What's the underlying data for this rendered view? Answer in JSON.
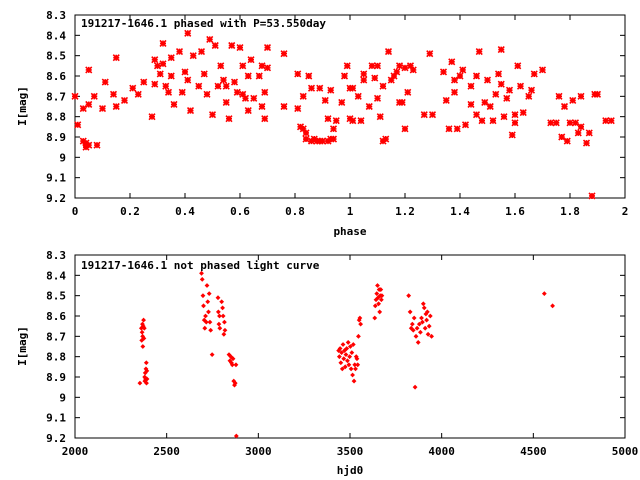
{
  "chart_data": [
    {
      "type": "scatter",
      "title": "191217-1646.1 phased with P=53.550day",
      "xlabel": "phase",
      "ylabel": "I[mag]",
      "xlim": [
        0,
        2
      ],
      "ylim": [
        8.3,
        9.2
      ],
      "y_inverted": true,
      "xticks": [
        "0",
        "0.2",
        "0.4",
        "0.6",
        "0.8",
        "1",
        "1.2",
        "1.4",
        "1.6",
        "1.8",
        "2"
      ],
      "yticks": [
        "8.3",
        "8.4",
        "8.5",
        "8.6",
        "8.7",
        "8.8",
        "8.9",
        "9",
        "9.1",
        "9.2"
      ],
      "marker": "star",
      "color": "#ff0000",
      "grid": false,
      "points": [
        [
          0.0,
          8.7
        ],
        [
          0.01,
          8.84
        ],
        [
          0.03,
          8.76
        ],
        [
          0.03,
          8.92
        ],
        [
          0.04,
          8.93
        ],
        [
          0.04,
          8.95
        ],
        [
          0.05,
          8.94
        ],
        [
          0.05,
          8.74
        ],
        [
          0.05,
          8.57
        ],
        [
          0.07,
          8.7
        ],
        [
          0.08,
          8.94
        ],
        [
          0.1,
          8.76
        ],
        [
          0.11,
          8.63
        ],
        [
          0.14,
          8.69
        ],
        [
          0.15,
          8.75
        ],
        [
          0.15,
          8.51
        ],
        [
          0.18,
          8.72
        ],
        [
          0.21,
          8.66
        ],
        [
          0.23,
          8.69
        ],
        [
          0.25,
          8.63
        ],
        [
          0.28,
          8.8
        ],
        [
          0.29,
          8.52
        ],
        [
          0.29,
          8.64
        ],
        [
          0.3,
          8.55
        ],
        [
          0.31,
          8.59
        ],
        [
          0.32,
          8.44
        ],
        [
          0.32,
          8.54
        ],
        [
          0.33,
          8.65
        ],
        [
          0.34,
          8.68
        ],
        [
          0.35,
          8.51
        ],
        [
          0.35,
          8.6
        ],
        [
          0.36,
          8.74
        ],
        [
          0.38,
          8.48
        ],
        [
          0.39,
          8.68
        ],
        [
          0.4,
          8.58
        ],
        [
          0.41,
          8.39
        ],
        [
          0.41,
          8.62
        ],
        [
          0.42,
          8.77
        ],
        [
          0.43,
          8.5
        ],
        [
          0.45,
          8.65
        ],
        [
          0.46,
          8.48
        ],
        [
          0.47,
          8.59
        ],
        [
          0.48,
          8.69
        ],
        [
          0.49,
          8.42
        ],
        [
          0.5,
          8.79
        ],
        [
          0.51,
          8.45
        ],
        [
          0.52,
          8.65
        ],
        [
          0.53,
          8.55
        ],
        [
          0.54,
          8.62
        ],
        [
          0.55,
          8.73
        ],
        [
          0.55,
          8.65
        ],
        [
          0.56,
          8.81
        ],
        [
          0.57,
          8.45
        ],
        [
          0.58,
          8.63
        ],
        [
          0.59,
          8.68
        ],
        [
          0.6,
          8.46
        ],
        [
          0.61,
          8.55
        ],
        [
          0.61,
          8.69
        ],
        [
          0.62,
          8.71
        ],
        [
          0.63,
          8.6
        ],
        [
          0.63,
          8.77
        ],
        [
          0.64,
          8.52
        ],
        [
          0.65,
          8.71
        ],
        [
          0.67,
          8.6
        ],
        [
          0.68,
          8.75
        ],
        [
          0.68,
          8.55
        ],
        [
          0.69,
          8.68
        ],
        [
          0.69,
          8.81
        ],
        [
          0.7,
          8.56
        ],
        [
          0.7,
          8.46
        ],
        [
          0.76,
          8.75
        ],
        [
          0.76,
          8.49
        ],
        [
          0.81,
          8.59
        ],
        [
          0.81,
          8.76
        ],
        [
          0.82,
          8.85
        ],
        [
          0.83,
          8.86
        ],
        [
          0.83,
          8.7
        ],
        [
          0.84,
          8.91
        ],
        [
          0.84,
          8.88
        ],
        [
          0.85,
          8.6
        ],
        [
          0.86,
          8.92
        ],
        [
          0.86,
          8.66
        ],
        [
          0.87,
          8.91
        ],
        [
          0.88,
          8.92
        ],
        [
          0.89,
          8.92
        ],
        [
          0.89,
          8.66
        ],
        [
          0.9,
          8.92
        ],
        [
          0.91,
          8.72
        ],
        [
          0.92,
          8.92
        ],
        [
          0.92,
          8.81
        ],
        [
          0.93,
          8.67
        ],
        [
          0.93,
          8.91
        ],
        [
          0.94,
          8.91
        ],
        [
          0.94,
          8.86
        ],
        [
          0.95,
          8.82
        ],
        [
          0.97,
          8.73
        ],
        [
          0.98,
          8.6
        ],
        [
          0.99,
          8.55
        ],
        [
          1.0,
          8.66
        ],
        [
          1.0,
          8.81
        ],
        [
          1.01,
          8.82
        ],
        [
          1.01,
          8.66
        ],
        [
          1.03,
          8.7
        ],
        [
          1.04,
          8.82
        ],
        [
          1.05,
          8.62
        ],
        [
          1.05,
          8.59
        ],
        [
          1.07,
          8.75
        ],
        [
          1.08,
          8.55
        ],
        [
          1.09,
          8.61
        ],
        [
          1.1,
          8.55
        ],
        [
          1.1,
          8.71
        ],
        [
          1.11,
          8.8
        ],
        [
          1.12,
          8.92
        ],
        [
          1.12,
          8.65
        ],
        [
          1.13,
          8.91
        ],
        [
          1.14,
          8.48
        ],
        [
          1.15,
          8.62
        ],
        [
          1.16,
          8.6
        ],
        [
          1.17,
          8.58
        ],
        [
          1.18,
          8.55
        ],
        [
          1.18,
          8.73
        ],
        [
          1.19,
          8.73
        ],
        [
          1.2,
          8.86
        ],
        [
          1.2,
          8.56
        ],
        [
          1.21,
          8.68
        ],
        [
          1.22,
          8.55
        ],
        [
          1.23,
          8.57
        ],
        [
          1.27,
          8.79
        ],
        [
          1.29,
          8.49
        ],
        [
          1.3,
          8.79
        ],
        [
          1.34,
          8.58
        ],
        [
          1.35,
          8.72
        ],
        [
          1.36,
          8.86
        ],
        [
          1.37,
          8.53
        ],
        [
          1.38,
          8.62
        ],
        [
          1.38,
          8.68
        ],
        [
          1.39,
          8.86
        ],
        [
          1.4,
          8.6
        ],
        [
          1.41,
          8.57
        ],
        [
          1.42,
          8.84
        ],
        [
          1.44,
          8.74
        ],
        [
          1.44,
          8.65
        ],
        [
          1.46,
          8.6
        ],
        [
          1.46,
          8.79
        ],
        [
          1.47,
          8.48
        ],
        [
          1.48,
          8.82
        ],
        [
          1.49,
          8.73
        ],
        [
          1.5,
          8.62
        ],
        [
          1.51,
          8.75
        ],
        [
          1.52,
          8.82
        ],
        [
          1.53,
          8.69
        ],
        [
          1.54,
          8.59
        ],
        [
          1.55,
          8.47
        ],
        [
          1.55,
          8.64
        ],
        [
          1.56,
          8.8
        ],
        [
          1.57,
          8.71
        ],
        [
          1.58,
          8.67
        ],
        [
          1.59,
          8.89
        ],
        [
          1.6,
          8.83
        ],
        [
          1.6,
          8.79
        ],
        [
          1.61,
          8.55
        ],
        [
          1.62,
          8.65
        ],
        [
          1.63,
          8.78
        ],
        [
          1.65,
          8.7
        ],
        [
          1.66,
          8.67
        ],
        [
          1.67,
          8.59
        ],
        [
          1.7,
          8.57
        ],
        [
          1.73,
          8.83
        ],
        [
          1.75,
          8.83
        ],
        [
          1.76,
          8.7
        ],
        [
          1.77,
          8.9
        ],
        [
          1.78,
          8.75
        ],
        [
          1.79,
          8.92
        ],
        [
          1.8,
          8.83
        ],
        [
          1.81,
          8.72
        ],
        [
          1.82,
          8.83
        ],
        [
          1.83,
          8.88
        ],
        [
          1.84,
          8.85
        ],
        [
          1.84,
          8.7
        ],
        [
          1.86,
          8.93
        ],
        [
          1.87,
          8.88
        ],
        [
          1.88,
          9.19
        ],
        [
          1.89,
          8.69
        ],
        [
          1.9,
          8.69
        ],
        [
          1.93,
          8.82
        ],
        [
          1.95,
          8.82
        ]
      ]
    },
    {
      "type": "scatter",
      "title": "191217-1646.1 not phased light curve",
      "xlabel": "hjd0",
      "ylabel": "I[mag]",
      "xlim": [
        2000,
        5000
      ],
      "ylim": [
        8.3,
        9.2
      ],
      "y_inverted": true,
      "xticks": [
        "2000",
        "2500",
        "3000",
        "3500",
        "4000",
        "4500",
        "5000"
      ],
      "yticks": [
        "8.3",
        "8.4",
        "8.5",
        "8.6",
        "8.7",
        "8.8",
        "8.9",
        "9",
        "9.1",
        "9.2"
      ],
      "marker": "diamond",
      "color": "#ff0000",
      "grid": false,
      "points": [
        [
          2354,
          8.93
        ],
        [
          2362,
          8.66
        ],
        [
          2364,
          8.72
        ],
        [
          2366,
          8.68
        ],
        [
          2368,
          8.64
        ],
        [
          2369,
          8.7
        ],
        [
          2370,
          8.75
        ],
        [
          2372,
          8.65
        ],
        [
          2374,
          8.62
        ],
        [
          2376,
          8.71
        ],
        [
          2378,
          8.66
        ],
        [
          2380,
          8.9
        ],
        [
          2381,
          8.92
        ],
        [
          2383,
          8.88
        ],
        [
          2385,
          8.91
        ],
        [
          2387,
          8.86
        ],
        [
          2389,
          8.83
        ],
        [
          2390,
          8.93
        ],
        [
          2392,
          8.87
        ],
        [
          2393,
          8.91
        ],
        [
          2690,
          8.39
        ],
        [
          2694,
          8.42
        ],
        [
          2698,
          8.5
        ],
        [
          2701,
          8.55
        ],
        [
          2705,
          8.62
        ],
        [
          2708,
          8.66
        ],
        [
          2712,
          8.6
        ],
        [
          2716,
          8.63
        ],
        [
          2720,
          8.45
        ],
        [
          2724,
          8.53
        ],
        [
          2728,
          8.58
        ],
        [
          2732,
          8.49
        ],
        [
          2736,
          8.63
        ],
        [
          2740,
          8.67
        ],
        [
          2748,
          8.79
        ],
        [
          2780,
          8.51
        ],
        [
          2782,
          8.58
        ],
        [
          2785,
          8.64
        ],
        [
          2788,
          8.6
        ],
        [
          2790,
          8.66
        ],
        [
          2800,
          8.53
        ],
        [
          2805,
          8.56
        ],
        [
          2808,
          8.6
        ],
        [
          2812,
          8.69
        ],
        [
          2815,
          8.63
        ],
        [
          2818,
          8.67
        ],
        [
          2840,
          8.79
        ],
        [
          2845,
          8.82
        ],
        [
          2850,
          8.8
        ],
        [
          2853,
          8.83
        ],
        [
          2858,
          8.84
        ],
        [
          2862,
          8.81
        ],
        [
          2866,
          8.92
        ],
        [
          2870,
          8.94
        ],
        [
          2874,
          8.93
        ],
        [
          2878,
          8.84
        ],
        [
          2880,
          9.19
        ],
        [
          3438,
          8.77
        ],
        [
          3442,
          8.8
        ],
        [
          3446,
          8.76
        ],
        [
          3450,
          8.83
        ],
        [
          3454,
          8.78
        ],
        [
          3458,
          8.86
        ],
        [
          3462,
          8.74
        ],
        [
          3466,
          8.81
        ],
        [
          3470,
          8.77
        ],
        [
          3474,
          8.85
        ],
        [
          3478,
          8.79
        ],
        [
          3482,
          8.76
        ],
        [
          3486,
          8.82
        ],
        [
          3490,
          8.73
        ],
        [
          3494,
          8.84
        ],
        [
          3498,
          8.8
        ],
        [
          3502,
          8.75
        ],
        [
          3506,
          8.86
        ],
        [
          3510,
          8.78
        ],
        [
          3514,
          8.89
        ],
        [
          3518,
          8.74
        ],
        [
          3522,
          8.92
        ],
        [
          3526,
          8.84
        ],
        [
          3530,
          8.86
        ],
        [
          3534,
          8.8
        ],
        [
          3538,
          8.81
        ],
        [
          3542,
          8.84
        ],
        [
          3546,
          8.7
        ],
        [
          3550,
          8.62
        ],
        [
          3554,
          8.61
        ],
        [
          3558,
          8.64
        ],
        [
          3635,
          8.61
        ],
        [
          3638,
          8.55
        ],
        [
          3642,
          8.52
        ],
        [
          3646,
          8.49
        ],
        [
          3650,
          8.45
        ],
        [
          3653,
          8.51
        ],
        [
          3656,
          8.54
        ],
        [
          3659,
          8.47
        ],
        [
          3662,
          8.58
        ],
        [
          3665,
          8.5
        ],
        [
          3668,
          8.47
        ],
        [
          3671,
          8.52
        ],
        [
          3674,
          8.5
        ],
        [
          3820,
          8.5
        ],
        [
          3828,
          8.58
        ],
        [
          3834,
          8.66
        ],
        [
          3840,
          8.64
        ],
        [
          3845,
          8.67
        ],
        [
          3850,
          8.61
        ],
        [
          3855,
          8.95
        ],
        [
          3860,
          8.7
        ],
        [
          3866,
          8.66
        ],
        [
          3872,
          8.73
        ],
        [
          3878,
          8.64
        ],
        [
          3884,
          8.68
        ],
        [
          3890,
          8.61
        ],
        [
          3895,
          8.63
        ],
        [
          3900,
          8.54
        ],
        [
          3905,
          8.56
        ],
        [
          3910,
          8.66
        ],
        [
          3914,
          8.59
        ],
        [
          3918,
          8.62
        ],
        [
          3922,
          8.58
        ],
        [
          3926,
          8.69
        ],
        [
          3932,
          8.65
        ],
        [
          3938,
          8.6
        ],
        [
          3945,
          8.7
        ],
        [
          4560,
          8.49
        ],
        [
          4605,
          8.55
        ]
      ]
    }
  ]
}
